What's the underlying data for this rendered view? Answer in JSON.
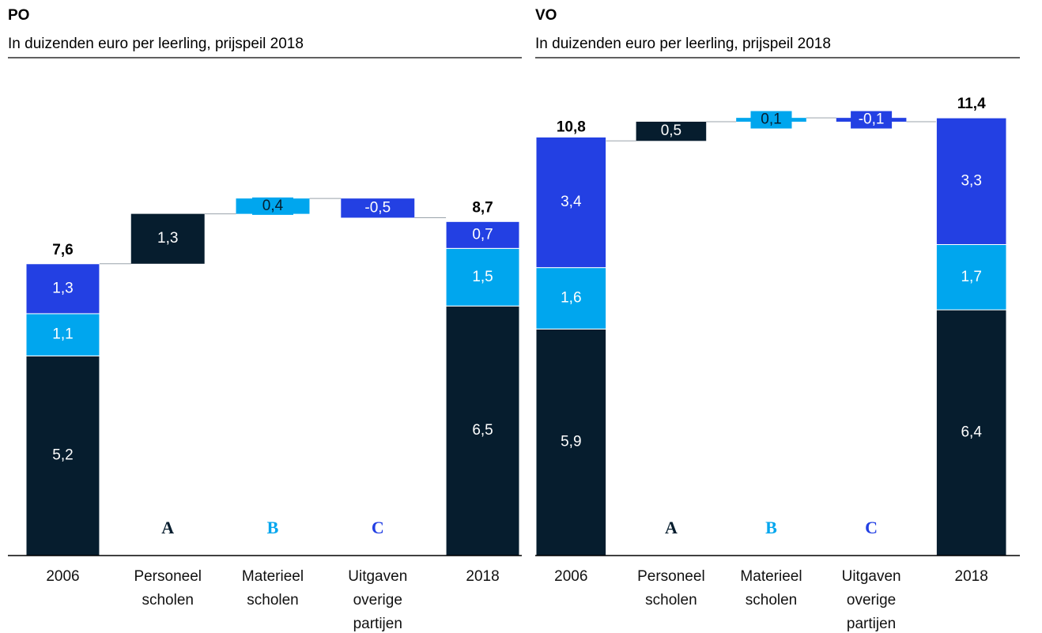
{
  "chart_data": [
    {
      "type": "waterfall",
      "title": "PO",
      "subtitle": "In duizenden euro per leerling, prijspeil 2018",
      "categories": [
        "2006",
        "Personeel scholen",
        "Materieel scholen",
        "Uitgaven overige partijen",
        "2018"
      ],
      "series": [
        {
          "name": "A",
          "color": "#061d2e",
          "values": [
            5.2,
            1.3,
            null,
            null,
            6.5
          ],
          "value_labels": [
            "5,2",
            "1,3",
            null,
            null,
            "6,5"
          ]
        },
        {
          "name": "B",
          "color": "#00a6ee",
          "values": [
            1.1,
            null,
            0.4,
            null,
            1.5
          ],
          "value_labels": [
            "1,1",
            null,
            "0,4",
            null,
            "1,5"
          ]
        },
        {
          "name": "C",
          "color": "#2340e3",
          "values": [
            1.3,
            null,
            null,
            -0.5,
            0.7
          ],
          "value_labels": [
            "1,3",
            null,
            null,
            "-0,5",
            "0,7"
          ]
        }
      ],
      "totals": [
        7.6,
        null,
        null,
        null,
        8.7
      ],
      "total_labels": [
        "7,6",
        null,
        null,
        null,
        "8,7"
      ],
      "ylim": [
        0,
        12
      ]
    },
    {
      "type": "waterfall",
      "title": "VO",
      "subtitle": "In duizenden euro per leerling, prijspeil 2018",
      "categories": [
        "2006",
        "Personeel scholen",
        "Materieel scholen",
        "Uitgaven overige partijen",
        "2018"
      ],
      "series": [
        {
          "name": "A",
          "color": "#061d2e",
          "values": [
            5.9,
            0.5,
            null,
            null,
            6.4
          ],
          "value_labels": [
            "5,9",
            "0,5",
            null,
            null,
            "6,4"
          ]
        },
        {
          "name": "B",
          "color": "#00a6ee",
          "values": [
            1.6,
            null,
            0.1,
            null,
            1.7
          ],
          "value_labels": [
            "1,6",
            null,
            "0,1",
            null,
            "1,7"
          ]
        },
        {
          "name": "C",
          "color": "#2340e3",
          "values": [
            3.4,
            null,
            null,
            -0.1,
            3.3
          ],
          "value_labels": [
            "3,4",
            null,
            null,
            "-0,1",
            "3,3"
          ]
        }
      ],
      "totals": [
        10.8,
        null,
        null,
        null,
        11.4
      ],
      "total_labels": [
        "10,8",
        null,
        null,
        null,
        "11,4"
      ],
      "ylim": [
        0,
        12
      ]
    }
  ]
}
